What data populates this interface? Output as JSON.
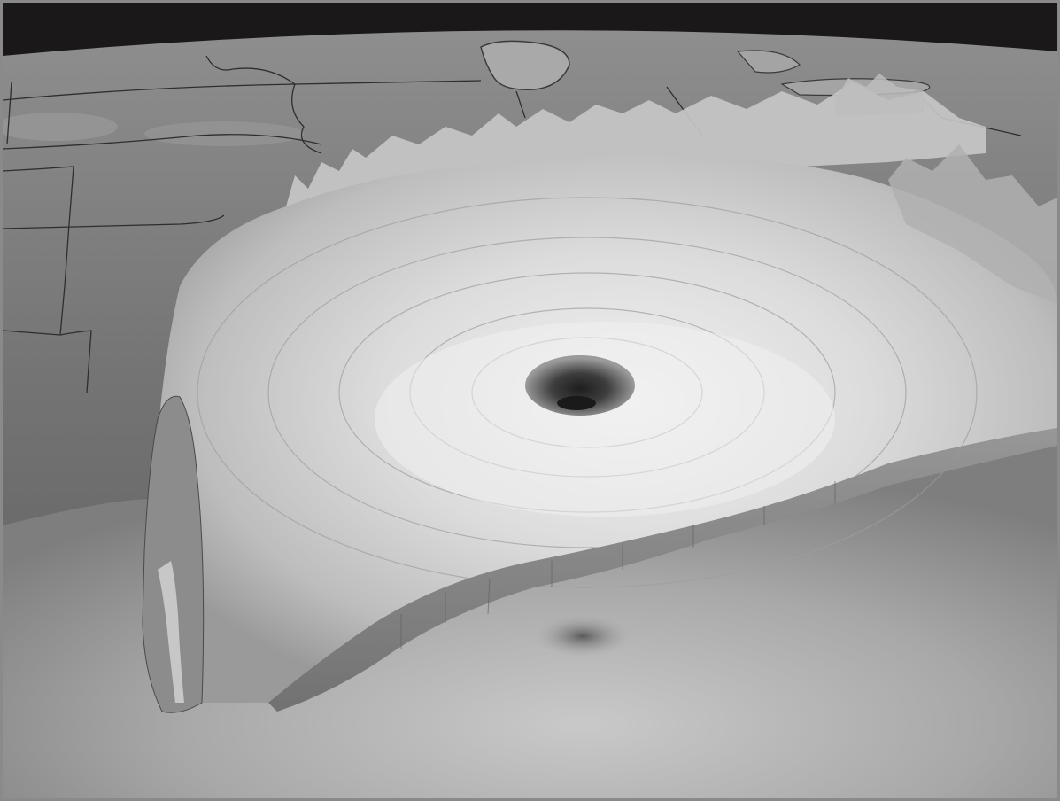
{
  "scene": {
    "subject": "hurricane-3d-cloud-visualization",
    "palette": {
      "space": "#1a1818",
      "land": "#7a7a7a",
      "land_dark": "#5a5a5a",
      "lake": "#a9a9a9",
      "ocean": "#9c9c9c",
      "cloud_light": "#e6e6e6",
      "cloud_mid": "#bdbdbd",
      "eye": "#2c2c2c",
      "frame": "#8a8a8a"
    }
  }
}
